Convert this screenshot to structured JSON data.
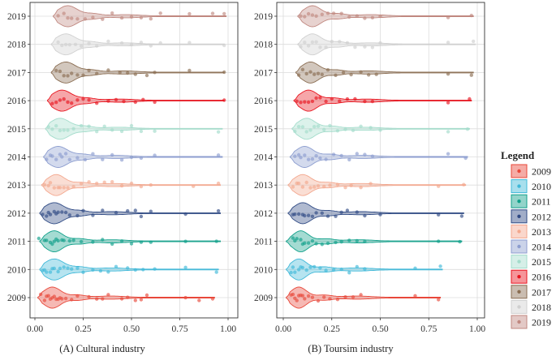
{
  "chart_data": [
    {
      "type": "violin",
      "panel_id": "A",
      "title": "(A) Cultural industry",
      "xlim": [
        0,
        1
      ],
      "x_ticks": [
        "0.00",
        "0.25",
        "0.50",
        "0.75",
        "1.00"
      ],
      "grid": true,
      "series": [
        {
          "year": "2009",
          "color": "#E8483A",
          "peak": 0.09,
          "spread": 0.045,
          "tail_end": 0.93,
          "points": [
            0.03,
            0.05,
            0.06,
            0.07,
            0.08,
            0.09,
            0.1,
            0.11,
            0.12,
            0.13,
            0.14,
            0.16,
            0.19,
            0.22,
            0.28,
            0.32,
            0.35,
            0.38,
            0.45,
            0.48,
            0.52,
            0.55,
            0.58,
            0.78,
            0.85,
            0.92
          ]
        },
        {
          "year": "2010",
          "color": "#3FB8D8",
          "peak": 0.1,
          "spread": 0.05,
          "tail_end": 0.95,
          "points": [
            0.04,
            0.05,
            0.06,
            0.08,
            0.09,
            0.1,
            0.12,
            0.13,
            0.15,
            0.17,
            0.19,
            0.22,
            0.25,
            0.3,
            0.34,
            0.38,
            0.42,
            0.48,
            0.52,
            0.56,
            0.62,
            0.78,
            0.94
          ]
        },
        {
          "year": "2011",
          "color": "#10A08A",
          "peak": 0.1,
          "spread": 0.045,
          "tail_end": 0.96,
          "points": [
            0.02,
            0.05,
            0.06,
            0.08,
            0.09,
            0.1,
            0.11,
            0.12,
            0.14,
            0.15,
            0.18,
            0.2,
            0.24,
            0.3,
            0.35,
            0.4,
            0.45,
            0.5,
            0.55,
            0.6,
            0.78,
            0.94
          ]
        },
        {
          "year": "2012",
          "color": "#2F4A84",
          "peak": 0.1,
          "spread": 0.05,
          "tail_end": 0.96,
          "points": [
            0.04,
            0.06,
            0.07,
            0.08,
            0.1,
            0.11,
            0.12,
            0.14,
            0.16,
            0.18,
            0.22,
            0.25,
            0.3,
            0.35,
            0.42,
            0.48,
            0.52,
            0.55,
            0.6,
            0.78,
            0.95
          ]
        },
        {
          "year": "2013",
          "color": "#F3A78E",
          "peak": 0.11,
          "spread": 0.045,
          "tail_end": 0.96,
          "points": [
            0.05,
            0.07,
            0.08,
            0.1,
            0.12,
            0.13,
            0.15,
            0.17,
            0.2,
            0.24,
            0.28,
            0.32,
            0.36,
            0.4,
            0.45,
            0.5,
            0.55,
            0.6,
            0.82,
            0.95
          ]
        },
        {
          "year": "2014",
          "color": "#8C9DCF",
          "peak": 0.12,
          "spread": 0.05,
          "tail_end": 0.97,
          "points": [
            0.06,
            0.08,
            0.09,
            0.11,
            0.13,
            0.14,
            0.16,
            0.18,
            0.22,
            0.26,
            0.3,
            0.35,
            0.4,
            0.45,
            0.5,
            0.55,
            0.62,
            0.95
          ]
        },
        {
          "year": "2015",
          "color": "#A3DCCB",
          "peak": 0.13,
          "spread": 0.05,
          "tail_end": 0.97,
          "points": [
            0.07,
            0.09,
            0.11,
            0.13,
            0.15,
            0.17,
            0.2,
            0.24,
            0.28,
            0.32,
            0.36,
            0.4,
            0.45,
            0.5,
            0.55,
            0.62,
            0.95
          ]
        },
        {
          "year": "2016",
          "color": "#E8141E",
          "peak": 0.14,
          "spread": 0.05,
          "tail_end": 0.98,
          "points": [
            0.09,
            0.11,
            0.13,
            0.15,
            0.17,
            0.19,
            0.22,
            0.25,
            0.28,
            0.32,
            0.38,
            0.42,
            0.46,
            0.52,
            0.56,
            0.62,
            0.98
          ]
        },
        {
          "year": "2017",
          "color": "#8A6D52",
          "peak": 0.16,
          "spread": 0.05,
          "tail_end": 0.98,
          "points": [
            0.11,
            0.13,
            0.15,
            0.17,
            0.19,
            0.22,
            0.25,
            0.28,
            0.32,
            0.38,
            0.44,
            0.48,
            0.52,
            0.58,
            0.62,
            0.8,
            0.98
          ]
        },
        {
          "year": "2018",
          "color": "#D0D0D0",
          "peak": 0.16,
          "spread": 0.05,
          "tail_end": 0.98,
          "points": [
            0.12,
            0.14,
            0.16,
            0.18,
            0.21,
            0.24,
            0.28,
            0.32,
            0.38,
            0.45,
            0.5,
            0.55,
            0.6,
            0.65,
            0.8,
            0.98
          ]
        },
        {
          "year": "2019",
          "color": "#C08880",
          "peak": 0.17,
          "spread": 0.05,
          "tail_end": 0.99,
          "points": [
            0.12,
            0.15,
            0.17,
            0.19,
            0.22,
            0.26,
            0.3,
            0.35,
            0.4,
            0.45,
            0.5,
            0.55,
            0.6,
            0.65,
            0.8,
            0.92,
            0.98
          ]
        }
      ]
    },
    {
      "type": "violin",
      "panel_id": "B",
      "title": "(B) Toursim industry",
      "xlim": [
        0,
        1
      ],
      "x_ticks": [
        "0.00",
        "0.25",
        "0.50",
        "0.75",
        "1.00"
      ],
      "grid": true,
      "series": [
        {
          "year": "2009",
          "color": "#E8483A",
          "peak": 0.08,
          "spread": 0.04,
          "tail_end": 0.81,
          "points": [
            0.04,
            0.05,
            0.06,
            0.07,
            0.08,
            0.09,
            0.1,
            0.11,
            0.13,
            0.15,
            0.18,
            0.21,
            0.24,
            0.28,
            0.32,
            0.36,
            0.4,
            0.68,
            0.8
          ]
        },
        {
          "year": "2010",
          "color": "#3FB8D8",
          "peak": 0.08,
          "spread": 0.04,
          "tail_end": 0.82,
          "points": [
            0.04,
            0.05,
            0.06,
            0.08,
            0.09,
            0.1,
            0.12,
            0.14,
            0.16,
            0.19,
            0.22,
            0.26,
            0.3,
            0.34,
            0.38,
            0.42,
            0.68,
            0.81
          ]
        },
        {
          "year": "2011",
          "color": "#10A08A",
          "peak": 0.09,
          "spread": 0.04,
          "tail_end": 0.92,
          "points": [
            0.05,
            0.06,
            0.07,
            0.09,
            0.1,
            0.11,
            0.13,
            0.15,
            0.17,
            0.2,
            0.23,
            0.27,
            0.3,
            0.34,
            0.38,
            0.42,
            0.8,
            0.91
          ]
        },
        {
          "year": "2012",
          "color": "#2F4A84",
          "peak": 0.1,
          "spread": 0.045,
          "tail_end": 0.93,
          "points": [
            0.05,
            0.06,
            0.08,
            0.1,
            0.11,
            0.13,
            0.15,
            0.17,
            0.2,
            0.23,
            0.27,
            0.3,
            0.33,
            0.38,
            0.42,
            0.5,
            0.8,
            0.92
          ]
        },
        {
          "year": "2013",
          "color": "#F3A78E",
          "peak": 0.1,
          "spread": 0.045,
          "tail_end": 0.94,
          "points": [
            0.05,
            0.07,
            0.08,
            0.1,
            0.12,
            0.14,
            0.16,
            0.18,
            0.21,
            0.24,
            0.28,
            0.32,
            0.35,
            0.4,
            0.45,
            0.8,
            0.93
          ]
        },
        {
          "year": "2014",
          "color": "#8C9DCF",
          "peak": 0.11,
          "spread": 0.045,
          "tail_end": 0.95,
          "points": [
            0.06,
            0.08,
            0.09,
            0.11,
            0.13,
            0.15,
            0.17,
            0.19,
            0.22,
            0.26,
            0.3,
            0.34,
            0.38,
            0.42,
            0.46,
            0.85,
            0.94
          ]
        },
        {
          "year": "2015",
          "color": "#A3DCCB",
          "peak": 0.12,
          "spread": 0.045,
          "tail_end": 0.96,
          "points": [
            0.06,
            0.08,
            0.1,
            0.12,
            0.14,
            0.16,
            0.18,
            0.21,
            0.24,
            0.28,
            0.32,
            0.36,
            0.4,
            0.45,
            0.5,
            0.85,
            0.95
          ]
        },
        {
          "year": "2016",
          "color": "#E8141E",
          "peak": 0.13,
          "spread": 0.045,
          "tail_end": 0.97,
          "points": [
            0.07,
            0.09,
            0.11,
            0.13,
            0.15,
            0.17,
            0.19,
            0.22,
            0.25,
            0.29,
            0.33,
            0.37,
            0.42,
            0.46,
            0.85,
            0.96
          ]
        },
        {
          "year": "2017",
          "color": "#8A6D52",
          "peak": 0.14,
          "spread": 0.045,
          "tail_end": 0.98,
          "points": [
            0.08,
            0.1,
            0.12,
            0.14,
            0.16,
            0.18,
            0.2,
            0.23,
            0.27,
            0.31,
            0.35,
            0.4,
            0.44,
            0.48,
            0.85,
            0.97
          ]
        },
        {
          "year": "2018",
          "color": "#D0D0D0",
          "peak": 0.15,
          "spread": 0.045,
          "tail_end": 0.99,
          "points": [
            0.09,
            0.11,
            0.13,
            0.15,
            0.17,
            0.19,
            0.22,
            0.25,
            0.29,
            0.33,
            0.37,
            0.42,
            0.46,
            0.5,
            0.85,
            0.98
          ]
        },
        {
          "year": "2019",
          "color": "#C08880",
          "peak": 0.15,
          "spread": 0.045,
          "tail_end": 0.98,
          "points": [
            0.09,
            0.11,
            0.13,
            0.15,
            0.17,
            0.2,
            0.23,
            0.26,
            0.3,
            0.34,
            0.38,
            0.42,
            0.46,
            0.5,
            0.85,
            0.97
          ]
        }
      ]
    }
  ],
  "legend": {
    "title": "Legend",
    "items": [
      {
        "label": "2009",
        "color": "#E8483A"
      },
      {
        "label": "2010",
        "color": "#3FB8D8"
      },
      {
        "label": "2011",
        "color": "#10A08A"
      },
      {
        "label": "2012",
        "color": "#2F4A84"
      },
      {
        "label": "2013",
        "color": "#F3A78E"
      },
      {
        "label": "2014",
        "color": "#8C9DCF"
      },
      {
        "label": "2015",
        "color": "#A3DCCB"
      },
      {
        "label": "2016",
        "color": "#E8141E"
      },
      {
        "label": "2017",
        "color": "#8A6D52"
      },
      {
        "label": "2018",
        "color": "#D0D0D0"
      },
      {
        "label": "2019",
        "color": "#C08880"
      }
    ]
  }
}
